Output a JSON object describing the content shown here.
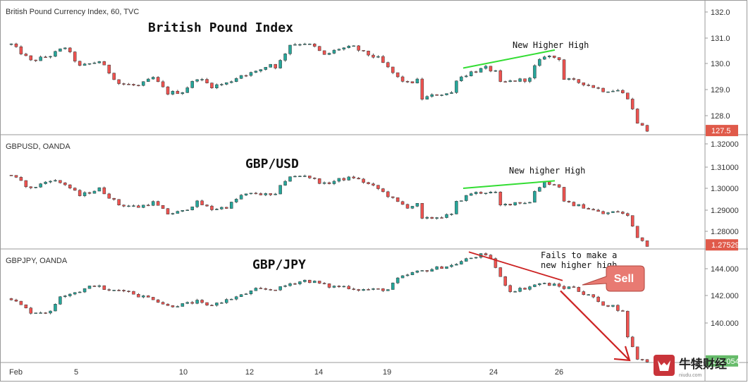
{
  "colors": {
    "up": "#26a69a",
    "down": "#ef5350",
    "wick": "#333333",
    "green_line": "#33dd33",
    "red_line": "#cc2222",
    "price_tag": "#e05a4a",
    "price_tag_green": "#66bb6a",
    "sell_bg": "#e87a72",
    "sell_text": "#ffffff",
    "grid_border": "#9a9a9a",
    "text": "#333333",
    "watermark_bg": "#c9343a"
  },
  "x_axis": {
    "labels": [
      "Feb",
      "5",
      "10",
      "12",
      "14",
      "19",
      "24",
      "26"
    ]
  },
  "chart_data": [
    {
      "type": "candlestick",
      "symbol_header": "British Pound Currency Index, 60, TVC",
      "title": "British Pound Index",
      "y_ticks": [
        "132.0",
        "131.0",
        "130.0",
        "129.0",
        "128.0"
      ],
      "ylim": [
        127.35,
        132.2
      ],
      "last_price": "127.5",
      "annotation": "New Higher High",
      "trendline": [
        [
          129.75,
          19
        ],
        [
          130.4,
          26
        ]
      ],
      "anchors": [
        [
          0,
          130.6
        ],
        [
          4,
          130.0
        ],
        [
          8,
          130.2
        ],
        [
          11,
          130.5
        ],
        [
          14,
          129.8
        ],
        [
          18,
          130.0
        ],
        [
          22,
          129.2
        ],
        [
          26,
          129.1
        ],
        [
          29,
          129.4
        ],
        [
          32,
          128.85
        ],
        [
          35,
          128.9
        ],
        [
          38,
          129.4
        ],
        [
          41,
          129.1
        ],
        [
          44,
          129.2
        ],
        [
          47,
          129.5
        ],
        [
          50,
          129.6
        ],
        [
          53,
          129.9
        ],
        [
          54,
          129.8
        ],
        [
          55,
          130.0
        ],
        [
          57,
          130.6
        ],
        [
          60,
          130.65
        ],
        [
          62,
          130.5
        ],
        [
          64,
          130.2
        ],
        [
          67,
          130.45
        ],
        [
          70,
          130.5
        ],
        [
          72,
          130.3
        ],
        [
          75,
          130.1
        ],
        [
          79,
          129.4
        ],
        [
          81,
          129.2
        ],
        [
          83,
          129.3
        ],
        [
          84,
          128.65
        ],
        [
          87,
          128.8
        ],
        [
          90,
          128.85
        ],
        [
          91,
          129.35
        ],
        [
          94,
          129.6
        ],
        [
          97,
          129.75
        ],
        [
          99,
          129.6
        ],
        [
          100,
          129.2
        ],
        [
          103,
          129.3
        ],
        [
          106,
          129.35
        ],
        [
          107,
          129.8
        ],
        [
          109,
          130.2
        ],
        [
          112,
          130.1
        ],
        [
          113,
          129.35
        ],
        [
          117,
          129.2
        ],
        [
          121,
          128.95
        ],
        [
          124,
          128.95
        ],
        [
          126,
          128.7
        ],
        [
          128,
          127.8
        ],
        [
          130,
          127.5
        ]
      ]
    },
    {
      "type": "candlestick",
      "symbol_header": "GBPUSD, OANDA",
      "title": "GBP/USD",
      "y_ticks": [
        "1.32000",
        "1.31000",
        "1.30000",
        "1.29000",
        "1.28000"
      ],
      "ylim": [
        1.2735,
        1.3238
      ],
      "last_price": "1.27529",
      "annotation": "New higher High",
      "trendline": [
        [
          1.3002,
          19
        ],
        [
          1.3035,
          26
        ]
      ],
      "anchors": [
        [
          0,
          1.306
        ],
        [
          4,
          1.3
        ],
        [
          8,
          1.304
        ],
        [
          11,
          1.302
        ],
        [
          14,
          1.297
        ],
        [
          18,
          1.3
        ],
        [
          22,
          1.293
        ],
        [
          26,
          1.292
        ],
        [
          29,
          1.294
        ],
        [
          32,
          1.289
        ],
        [
          35,
          1.29
        ],
        [
          38,
          1.294
        ],
        [
          41,
          1.291
        ],
        [
          44,
          1.292
        ],
        [
          47,
          1.297
        ],
        [
          50,
          1.298
        ],
        [
          53,
          1.297
        ],
        [
          54,
          1.297
        ],
        [
          55,
          1.302
        ],
        [
          57,
          1.305
        ],
        [
          60,
          1.306
        ],
        [
          62,
          1.304
        ],
        [
          64,
          1.302
        ],
        [
          67,
          1.304
        ],
        [
          70,
          1.305
        ],
        [
          72,
          1.303
        ],
        [
          75,
          1.3
        ],
        [
          79,
          1.294
        ],
        [
          81,
          1.292
        ],
        [
          83,
          1.293
        ],
        [
          84,
          1.2865
        ],
        [
          87,
          1.2875
        ],
        [
          90,
          1.2885
        ],
        [
          91,
          1.294
        ],
        [
          94,
          1.298
        ],
        [
          97,
          1.2985
        ],
        [
          99,
          1.298
        ],
        [
          100,
          1.2925
        ],
        [
          103,
          1.294
        ],
        [
          106,
          1.294
        ],
        [
          107,
          1.299
        ],
        [
          109,
          1.303
        ],
        [
          112,
          1.301
        ],
        [
          113,
          1.294
        ],
        [
          117,
          1.292
        ],
        [
          121,
          1.289
        ],
        [
          124,
          1.29
        ],
        [
          126,
          1.288
        ],
        [
          128,
          1.279
        ],
        [
          130,
          1.2753
        ]
      ]
    },
    {
      "type": "candlestick",
      "symbol_header": "GBPJPY, OANDA",
      "title": "GBP/JPY",
      "y_ticks": [
        "144.000",
        "142.000",
        "140.000"
      ],
      "ylim": [
        137.95,
        145.5
      ],
      "last_price": "138.054",
      "annotation": "Fails to make a new higher high",
      "callout_label": "Sell",
      "resistance_line": [
        [
          145.3,
          19
        ],
        [
          143.4,
          26
        ]
      ],
      "arrow_line": [
        [
          142.9,
          25
        ],
        [
          138.0,
          28
        ]
      ],
      "anchors": [
        [
          0,
          142.2
        ],
        [
          4,
          141.3
        ],
        [
          8,
          141.3
        ],
        [
          10,
          142.4
        ],
        [
          14,
          142.7
        ],
        [
          17,
          143.1
        ],
        [
          20,
          142.7
        ],
        [
          23,
          142.8
        ],
        [
          26,
          142.4
        ],
        [
          29,
          142.2
        ],
        [
          32,
          141.7
        ],
        [
          35,
          141.8
        ],
        [
          38,
          142.0
        ],
        [
          40,
          141.7
        ],
        [
          44,
          142.1
        ],
        [
          47,
          142.4
        ],
        [
          50,
          142.8
        ],
        [
          53,
          142.8
        ],
        [
          55,
          142.9
        ],
        [
          57,
          143.2
        ],
        [
          60,
          143.4
        ],
        [
          62,
          143.3
        ],
        [
          65,
          143.0
        ],
        [
          68,
          143.0
        ],
        [
          71,
          142.8
        ],
        [
          74,
          142.8
        ],
        [
          77,
          142.8
        ],
        [
          79,
          143.5
        ],
        [
          82,
          143.9
        ],
        [
          85,
          144.1
        ],
        [
          88,
          144.3
        ],
        [
          90,
          144.4
        ],
        [
          93,
          144.8
        ],
        [
          96,
          145.1
        ],
        [
          98,
          144.9
        ],
        [
          100,
          143.6
        ],
        [
          102,
          142.7
        ],
        [
          105,
          142.9
        ],
        [
          108,
          143.2
        ],
        [
          111,
          143.1
        ],
        [
          113,
          142.9
        ],
        [
          115,
          143.0
        ],
        [
          117,
          142.5
        ],
        [
          119,
          142.3
        ],
        [
          120,
          141.9
        ],
        [
          123,
          141.7
        ],
        [
          125,
          141.3
        ],
        [
          126,
          139.7
        ],
        [
          128,
          138.2
        ],
        [
          130,
          138.05
        ]
      ]
    }
  ],
  "watermark": {
    "text": "牛犊财经",
    "sub": "niudu.com"
  }
}
